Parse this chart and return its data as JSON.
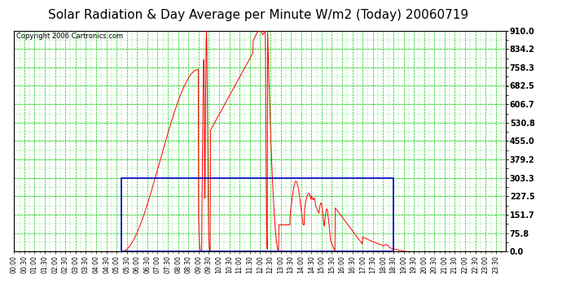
{
  "title": "Solar Radiation & Day Average per Minute W/m2 (Today) 20060719",
  "copyright": "Copyright 2006 Cartronics.com",
  "bg_color": "#ffffff",
  "plot_bg_color": "#ffffff",
  "grid_color": "#00cc00",
  "yticks": [
    0.0,
    75.8,
    151.7,
    227.5,
    303.3,
    379.2,
    455.0,
    530.8,
    606.7,
    682.5,
    758.3,
    834.2,
    910.0
  ],
  "ymin": 0.0,
  "ymax": 910.0,
  "line_color": "#ff0000",
  "box_color": "#0000cc",
  "title_fontsize": 11,
  "copyright_fontsize": 6,
  "tick_fontsize": 5.5,
  "ytick_fontsize": 7
}
